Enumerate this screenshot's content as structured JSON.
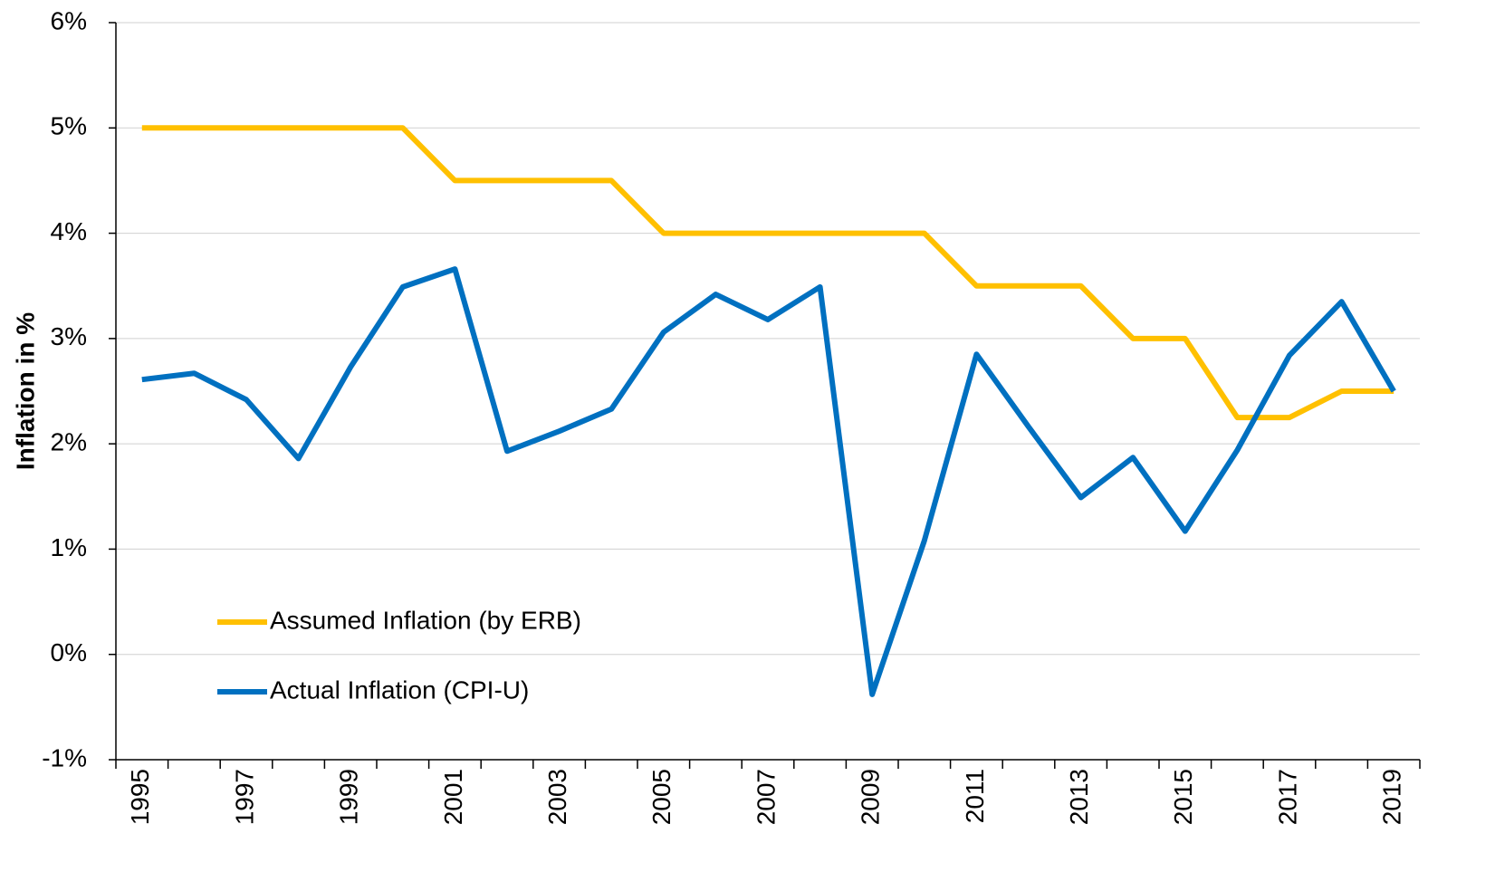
{
  "chart_data": {
    "type": "line",
    "y_label": "Inflation in %",
    "categories": [
      "1995",
      null,
      "1997",
      null,
      "1999",
      null,
      "2001",
      null,
      "2003",
      null,
      "2005",
      null,
      "2007",
      null,
      "2009",
      null,
      "2011",
      null,
      "2013",
      null,
      "2015",
      null,
      "2017",
      null,
      "2019"
    ],
    "series": [
      {
        "name": "Assumed Inflation (by ERB)",
        "color": "#FFC000",
        "values": [
          5,
          5,
          5,
          5,
          5,
          5,
          4.5,
          4.5,
          4.5,
          4.5,
          4,
          4,
          4,
          4,
          4,
          4,
          3.5,
          3.5,
          3.5,
          3,
          3,
          2.25,
          2.25,
          2.5,
          2.5
        ]
      },
      {
        "name": "Actual Inflation (CPI-U)",
        "color": "#0070C0",
        "values": [
          2.61,
          2.67,
          2.42,
          1.86,
          2.73,
          3.49,
          3.66,
          1.93,
          2.12,
          2.33,
          3.06,
          3.42,
          3.18,
          3.49,
          -0.38,
          1.08,
          2.85,
          2.16,
          1.49,
          1.87,
          1.17,
          1.94,
          2.84,
          3.35,
          2.5
        ]
      }
    ],
    "ylim": [
      -1,
      6
    ],
    "yticks": [
      {
        "value": -1,
        "label": "-1%"
      },
      {
        "value": 0,
        "label": "0%"
      },
      {
        "value": 1,
        "label": "1%"
      },
      {
        "value": 2,
        "label": "2%"
      },
      {
        "value": 3,
        "label": "3%"
      },
      {
        "value": 4,
        "label": "4%"
      },
      {
        "value": 5,
        "label": "5%"
      },
      {
        "value": 6,
        "label": "6%"
      }
    ],
    "grid": true,
    "legend": "lower left"
  }
}
